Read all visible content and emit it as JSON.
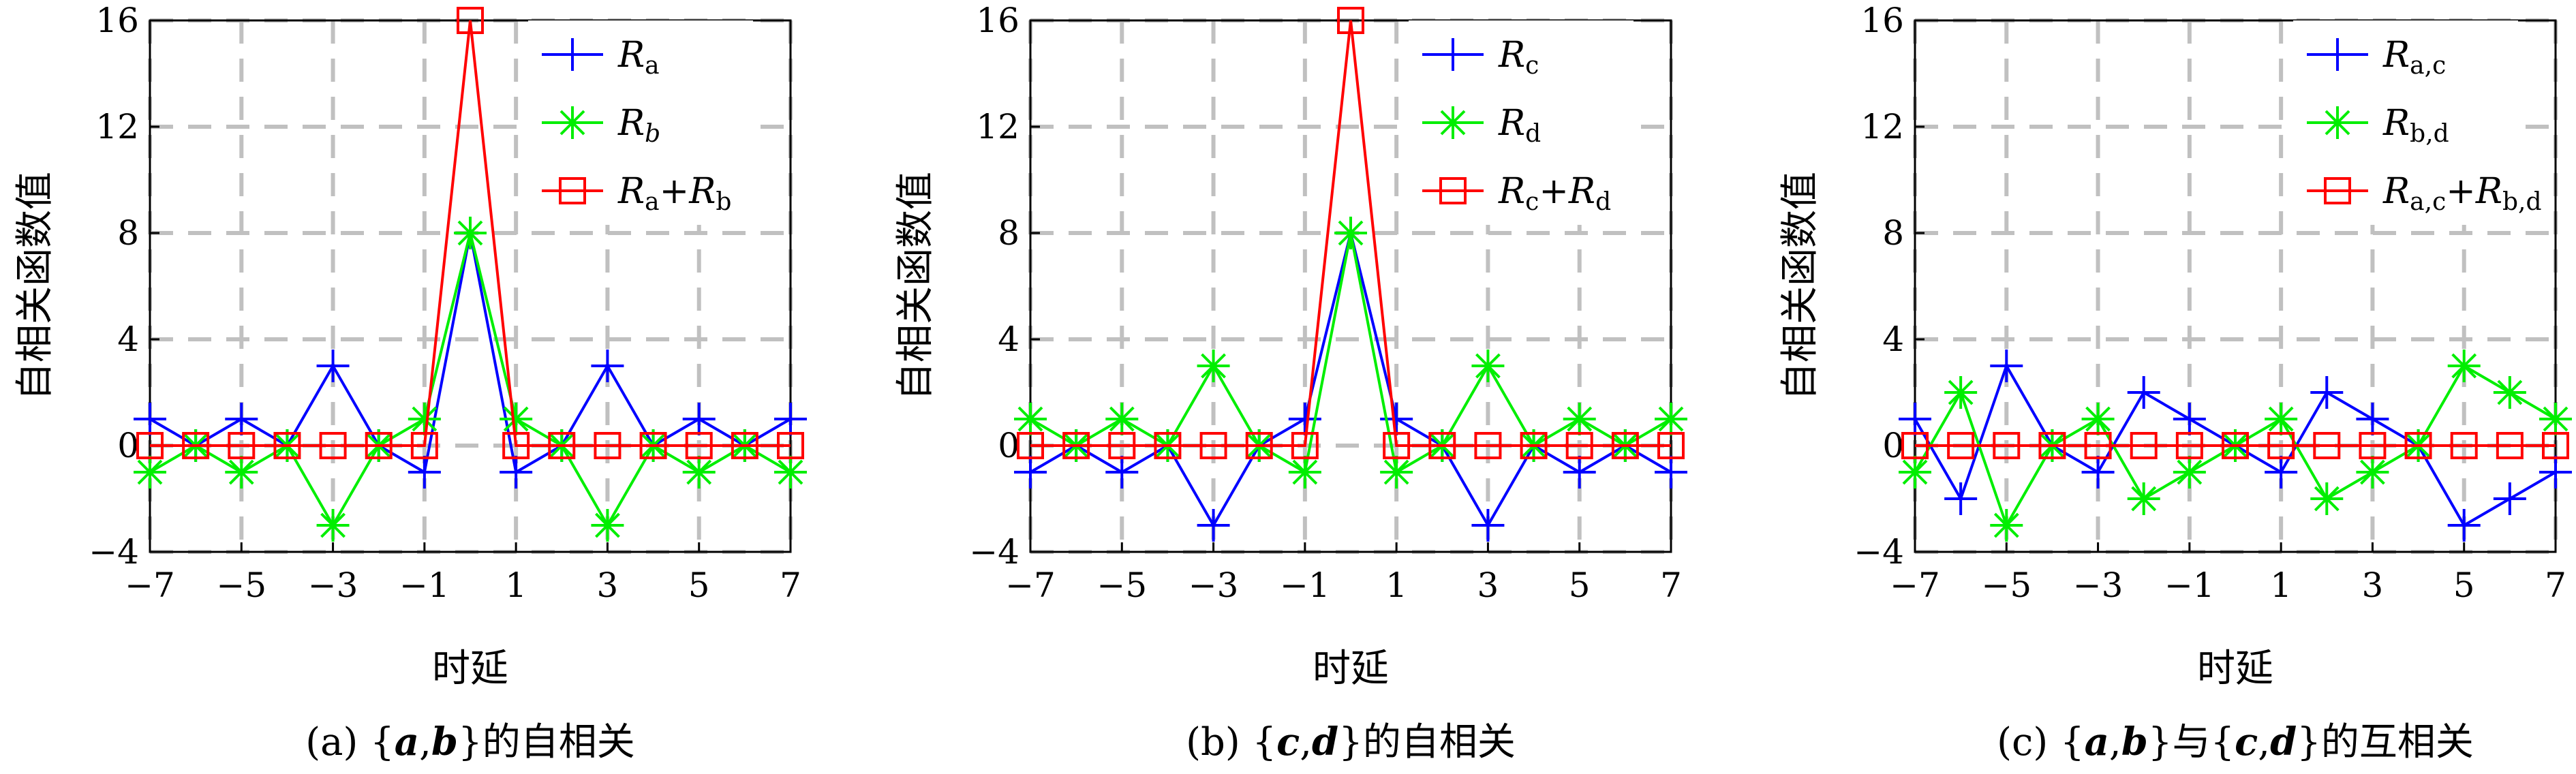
{
  "colors": {
    "blue": "#0000ff",
    "green": "#00ee00",
    "red": "#ff0000",
    "grid": "#c0c0c0"
  },
  "chart_data": [
    {
      "type": "line",
      "caption": {
        "prefix": "(a) {",
        "v1": "a",
        "sep": ",",
        "v2": "b",
        "suffix": "}的自相关"
      },
      "xlabel": "时延",
      "ylabel": "自相关函数值",
      "xlim": [
        -7,
        7
      ],
      "ylim": [
        -4,
        16
      ],
      "xticks": [
        "-7",
        "-5",
        "-3",
        "-1",
        "1",
        "3",
        "5",
        "7"
      ],
      "yticks": [
        "-4",
        "0",
        "4",
        "8",
        "12",
        "16"
      ],
      "grid": true,
      "legend_position": "top-right",
      "x": [
        -7,
        -6,
        -5,
        -4,
        -3,
        -2,
        -1,
        0,
        1,
        2,
        3,
        4,
        5,
        6,
        7
      ],
      "series": [
        {
          "base": "R",
          "sub": "a",
          "marker": "plus",
          "color": "blue",
          "values": [
            1,
            0,
            1,
            0,
            3,
            0,
            -1,
            8,
            -1,
            0,
            3,
            0,
            1,
            0,
            1
          ]
        },
        {
          "base": "R",
          "sub": "b",
          "sub_italic": true,
          "marker": "asterisk",
          "color": "green",
          "values": [
            -1,
            0,
            -1,
            0,
            -3,
            0,
            1,
            8,
            1,
            0,
            -3,
            0,
            -1,
            0,
            -1
          ]
        },
        {
          "base": "R",
          "sub": "a",
          "plus": "+",
          "base2": "R",
          "sub2": "b",
          "marker": "square",
          "color": "red",
          "values": [
            0,
            0,
            0,
            0,
            0,
            0,
            0,
            16,
            0,
            0,
            0,
            0,
            0,
            0,
            0
          ]
        }
      ]
    },
    {
      "type": "line",
      "caption": {
        "prefix": "(b) {",
        "v1": "c",
        "sep": ",",
        "v2": "d",
        "suffix": "}的自相关"
      },
      "xlabel": "时延",
      "ylabel": "自相关函数值",
      "xlim": [
        -7,
        7
      ],
      "ylim": [
        -4,
        16
      ],
      "xticks": [
        "-7",
        "-5",
        "-3",
        "-1",
        "1",
        "3",
        "5",
        "7"
      ],
      "yticks": [
        "-4",
        "0",
        "4",
        "8",
        "12",
        "16"
      ],
      "grid": true,
      "legend_position": "top-right",
      "x": [
        -7,
        -6,
        -5,
        -4,
        -3,
        -2,
        -1,
        0,
        1,
        2,
        3,
        4,
        5,
        6,
        7
      ],
      "series": [
        {
          "base": "R",
          "sub": "c",
          "marker": "plus",
          "color": "blue",
          "values": [
            -1,
            0,
            -1,
            0,
            -3,
            0,
            1,
            8,
            1,
            0,
            -3,
            0,
            -1,
            0,
            -1
          ]
        },
        {
          "base": "R",
          "sub": "d",
          "marker": "asterisk",
          "color": "green",
          "values": [
            1,
            0,
            1,
            0,
            3,
            0,
            -1,
            8,
            -1,
            0,
            3,
            0,
            1,
            0,
            1
          ]
        },
        {
          "base": "R",
          "sub": "c",
          "plus": "+",
          "base2": "R",
          "sub2": "d",
          "marker": "square",
          "color": "red",
          "values": [
            0,
            0,
            0,
            0,
            0,
            0,
            0,
            16,
            0,
            0,
            0,
            0,
            0,
            0,
            0
          ]
        }
      ]
    },
    {
      "type": "line",
      "caption": {
        "prefix": "(c) {",
        "v1": "a",
        "sep": ",",
        "v2": "b",
        "mid": "}与{",
        "v3": "c",
        "sep2": ",",
        "v4": "d",
        "suffix": "}的互相关"
      },
      "xlabel": "时延",
      "ylabel": "自相关函数值",
      "xlim": [
        -7,
        7
      ],
      "ylim": [
        -4,
        16
      ],
      "xticks": [
        "-7",
        "-5",
        "-3",
        "-1",
        "1",
        "3",
        "5",
        "7"
      ],
      "yticks": [
        "-4",
        "0",
        "4",
        "8",
        "12",
        "16"
      ],
      "grid": true,
      "legend_position": "top-right",
      "x": [
        -7,
        -6,
        -5,
        -4,
        -3,
        -2,
        -1,
        0,
        1,
        2,
        3,
        4,
        5,
        6,
        7
      ],
      "series": [
        {
          "base": "R",
          "sub": "a,c",
          "marker": "plus",
          "color": "blue",
          "values": [
            1,
            -2,
            3,
            0,
            -1,
            2,
            1,
            0,
            -1,
            2,
            1,
            0,
            -3,
            -2,
            -1
          ]
        },
        {
          "base": "R",
          "sub": "b,d",
          "marker": "asterisk",
          "color": "green",
          "values": [
            -1,
            2,
            -3,
            0,
            1,
            -2,
            -1,
            0,
            1,
            -2,
            -1,
            0,
            3,
            2,
            1
          ]
        },
        {
          "base": "R",
          "sub": "a,c",
          "plus": "+",
          "base2": "R",
          "sub2": "b,d",
          "marker": "square",
          "color": "red",
          "values": [
            0,
            0,
            0,
            0,
            0,
            0,
            0,
            0,
            0,
            0,
            0,
            0,
            0,
            0,
            0
          ]
        }
      ]
    }
  ]
}
